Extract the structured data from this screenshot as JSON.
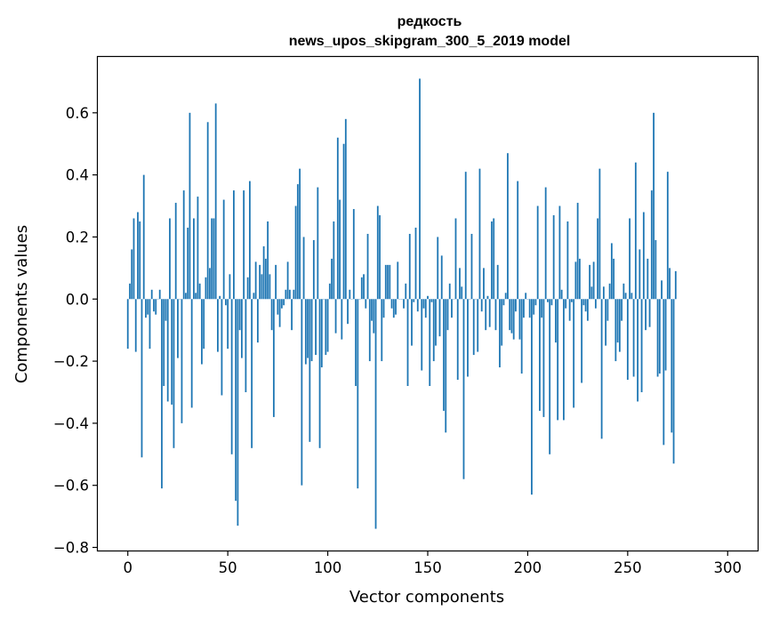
{
  "chart_data": {
    "type": "bar",
    "title": "редкость",
    "subtitle": "news_upos_skipgram_300_5_2019 model",
    "xlabel": "Vector components",
    "ylabel": "Components values",
    "xlim": [
      -15,
      315
    ],
    "ylim": [
      -0.81,
      0.78
    ],
    "xticks": [
      0,
      50,
      100,
      150,
      200,
      250,
      300
    ],
    "yticks": [
      -0.8,
      -0.6,
      -0.4,
      -0.2,
      0.0,
      0.2,
      0.4,
      0.6
    ],
    "ytick_labels": [
      "−0.8",
      "−0.6",
      "−0.4",
      "−0.2",
      "0.0",
      "0.2",
      "0.4",
      "0.6"
    ],
    "grid": false,
    "bar_color": "#1f77b4",
    "values": [
      -0.16,
      0.05,
      0.16,
      0.26,
      -0.17,
      0.28,
      0.25,
      -0.51,
      0.4,
      -0.06,
      -0.05,
      -0.16,
      0.03,
      -0.04,
      -0.05,
      0.0,
      0.03,
      -0.61,
      -0.28,
      -0.07,
      -0.33,
      0.26,
      -0.34,
      -0.48,
      0.31,
      -0.19,
      0.0,
      -0.4,
      0.35,
      0.02,
      0.23,
      0.6,
      -0.35,
      0.26,
      0.02,
      0.33,
      0.05,
      -0.21,
      -0.16,
      0.07,
      0.57,
      0.1,
      0.26,
      0.26,
      0.63,
      -0.17,
      0.01,
      -0.31,
      0.32,
      -0.02,
      -0.16,
      0.08,
      -0.5,
      0.35,
      -0.65,
      -0.73,
      -0.1,
      -0.19,
      0.35,
      -0.3,
      0.07,
      0.38,
      -0.48,
      0.02,
      0.12,
      -0.14,
      0.11,
      0.08,
      0.17,
      0.13,
      0.25,
      0.08,
      -0.1,
      -0.38,
      0.11,
      -0.05,
      -0.09,
      -0.03,
      -0.02,
      0.03,
      0.12,
      0.03,
      -0.1,
      0.03,
      0.3,
      0.37,
      0.42,
      -0.6,
      0.2,
      -0.21,
      -0.19,
      -0.46,
      -0.2,
      0.19,
      -0.18,
      0.36,
      -0.48,
      -0.22,
      0.0,
      -0.18,
      -0.17,
      0.05,
      0.13,
      0.25,
      -0.11,
      0.52,
      0.32,
      -0.13,
      0.5,
      0.58,
      -0.08,
      0.03,
      0.0,
      0.29,
      -0.28,
      -0.61,
      0.0,
      0.07,
      0.08,
      -0.03,
      0.21,
      -0.2,
      -0.07,
      -0.11,
      -0.74,
      0.3,
      0.27,
      -0.2,
      -0.06,
      0.11,
      0.11,
      0.11,
      -0.03,
      -0.06,
      -0.05,
      0.12,
      0.0,
      0.0,
      -0.03,
      0.05,
      -0.28,
      0.21,
      -0.15,
      -0.01,
      0.23,
      -0.04,
      0.71,
      -0.23,
      -0.03,
      -0.06,
      0.01,
      -0.28,
      -0.01,
      -0.2,
      -0.15,
      0.2,
      -0.12,
      0.14,
      -0.36,
      -0.43,
      -0.1,
      0.05,
      -0.06,
      0.0,
      0.26,
      -0.26,
      0.1,
      0.04,
      -0.58,
      0.41,
      -0.25,
      0.0,
      0.21,
      -0.18,
      0.0,
      -0.17,
      0.42,
      -0.04,
      0.1,
      -0.1,
      0.01,
      -0.09,
      0.25,
      0.26,
      -0.1,
      0.11,
      -0.22,
      -0.15,
      -0.02,
      0.02,
      0.47,
      -0.1,
      -0.11,
      -0.13,
      -0.04,
      0.38,
      -0.13,
      -0.24,
      -0.06,
      0.02,
      0.0,
      -0.06,
      -0.63,
      -0.05,
      -0.02,
      0.3,
      -0.36,
      -0.06,
      -0.38,
      0.36,
      -0.01,
      -0.5,
      -0.02,
      0.27,
      -0.14,
      -0.39,
      0.3,
      0.03,
      -0.39,
      -0.03,
      0.25,
      -0.07,
      -0.01,
      -0.35,
      0.12,
      0.31,
      0.13,
      -0.27,
      -0.02,
      -0.04,
      -0.07,
      0.11,
      0.04,
      0.12,
      -0.03,
      0.26,
      0.42,
      -0.45,
      0.04,
      -0.15,
      -0.07,
      0.05,
      0.18,
      0.13,
      -0.2,
      -0.14,
      -0.17,
      -0.07,
      0.05,
      0.02,
      -0.26,
      0.26,
      0.02,
      -0.25,
      0.44,
      -0.33,
      0.16,
      -0.3,
      0.28,
      -0.1,
      0.13,
      -0.09,
      0.35,
      0.6,
      0.19,
      -0.25,
      -0.24,
      0.06,
      -0.47,
      -0.23,
      0.41,
      0.1,
      -0.43,
      -0.53,
      0.09
    ]
  }
}
